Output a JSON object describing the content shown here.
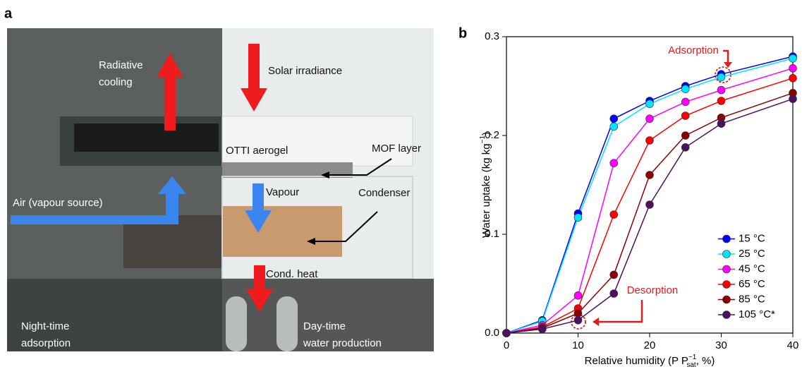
{
  "panel_labels": {
    "a": "a",
    "b": "b"
  },
  "illustration": {
    "radiative_cooling": [
      "Radiative",
      "cooling"
    ],
    "solar_irradiance": "Solar irradiance",
    "otti_aerogel": "OTTI aerogel",
    "mof_layer": "MOF layer",
    "air_source": "Air (vapour source)",
    "vapour": "Vapour",
    "condenser": "Condenser",
    "cond_heat": "Cond. heat",
    "night": [
      "Night-time",
      "adsorption"
    ],
    "day": [
      "Day-time",
      "water production"
    ]
  },
  "chart_data": {
    "type": "line",
    "xlabel": [
      "Relative humidity (P P",
      "−1",
      "sat",
      ", %)"
    ],
    "ylabel": [
      "Water uptake (kg kg",
      "−1",
      ")"
    ],
    "annotations": [
      "Adsorption",
      "Desorption"
    ],
    "x": [
      0,
      5,
      10,
      15,
      20,
      25,
      30,
      40
    ],
    "series": [
      {
        "name": "15 °C",
        "color": "#0000ff",
        "values": [
          0,
          0.013,
          0.121,
          0.217,
          0.235,
          0.25,
          0.262,
          0.28
        ]
      },
      {
        "name": "25 °C",
        "color": "#00e5ff",
        "values": [
          0,
          0.012,
          0.117,
          0.209,
          0.232,
          0.247,
          0.259,
          0.278
        ]
      },
      {
        "name": "45 °C",
        "color": "#ff00ff",
        "values": [
          0,
          0.008,
          0.038,
          0.172,
          0.217,
          0.234,
          0.246,
          0.268
        ]
      },
      {
        "name": "65 °C",
        "color": "#ff0000",
        "values": [
          0,
          0.006,
          0.025,
          0.12,
          0.195,
          0.22,
          0.235,
          0.258
        ]
      },
      {
        "name": "85 °C",
        "color": "#8b0000",
        "values": [
          0,
          0.005,
          0.02,
          0.059,
          0.16,
          0.2,
          0.218,
          0.243
        ]
      },
      {
        "name": "105 °C*",
        "color": "#4b1060",
        "values": [
          0,
          0.004,
          0.013,
          0.04,
          0.13,
          0.188,
          0.212,
          0.237
        ]
      }
    ],
    "xlim": [
      0,
      40
    ],
    "xticks": [
      0,
      10,
      20,
      30,
      40
    ],
    "ylim": [
      0,
      0.3
    ],
    "yticks": [
      {
        "value": 0,
        "label": "0.0"
      },
      0.1,
      0.2,
      0.3
    ],
    "legend": "lower right"
  }
}
